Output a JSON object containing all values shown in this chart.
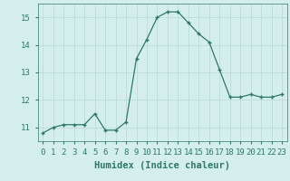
{
  "x": [
    0,
    1,
    2,
    3,
    4,
    5,
    6,
    7,
    8,
    9,
    10,
    11,
    12,
    13,
    14,
    15,
    16,
    17,
    18,
    19,
    20,
    21,
    22,
    23
  ],
  "y": [
    10.8,
    11.0,
    11.1,
    11.1,
    11.1,
    11.5,
    10.9,
    10.9,
    11.2,
    13.5,
    14.2,
    15.0,
    15.2,
    15.2,
    14.8,
    14.4,
    14.1,
    13.1,
    12.1,
    12.1,
    12.2,
    12.1,
    12.1,
    12.2
  ],
  "xlabel": "Humidex (Indice chaleur)",
  "line_color": "#2d7a6a",
  "marker": "+",
  "marker_color": "#2d7a6a",
  "bg_color": "#d4eded",
  "grid_color": "#b8d8d8",
  "tick_color": "#2d7a6a",
  "label_color": "#2d7a6a",
  "xlim": [
    -0.5,
    23.5
  ],
  "ylim": [
    10.5,
    15.5
  ],
  "yticks": [
    11,
    12,
    13,
    14,
    15
  ],
  "xticks": [
    0,
    1,
    2,
    3,
    4,
    5,
    6,
    7,
    8,
    9,
    10,
    11,
    12,
    13,
    14,
    15,
    16,
    17,
    18,
    19,
    20,
    21,
    22,
    23
  ],
  "xlabel_fontsize": 7.5,
  "tick_fontsize": 6.5,
  "linewidth": 0.9,
  "markersize": 3.5,
  "markeredgewidth": 1.0
}
